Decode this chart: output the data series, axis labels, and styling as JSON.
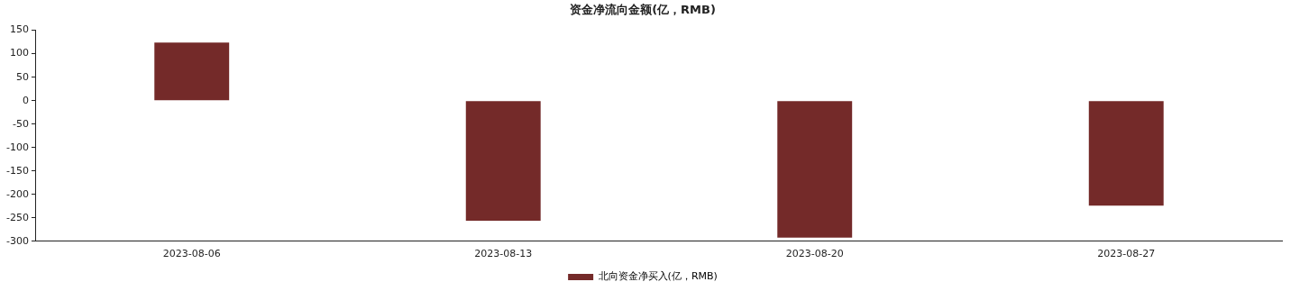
{
  "chart_data": {
    "type": "bar",
    "title": "资金净流向金额(亿，RMB)",
    "categories": [
      "2023-08-06",
      "2023-08-13",
      "2023-08-20",
      "2023-08-27"
    ],
    "series": [
      {
        "name": "北向资金净买入(亿，RMB)",
        "color": "#742a29",
        "values": [
          124,
          -256,
          -292,
          -224
        ]
      }
    ],
    "ylim": [
      -300,
      150
    ],
    "yticks": [
      -300,
      -250,
      -200,
      -150,
      -100,
      -50,
      0,
      50,
      100,
      150
    ],
    "grid": false,
    "legend": "bottom"
  }
}
